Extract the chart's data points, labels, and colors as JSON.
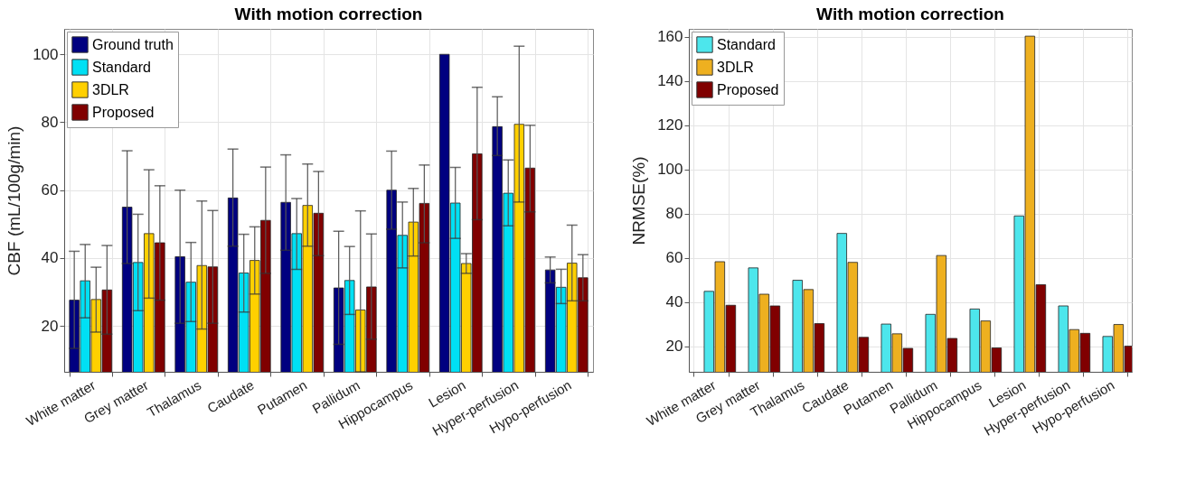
{
  "chart_data": [
    {
      "type": "bar",
      "title": "With motion correction",
      "ylabel": "CBF (mL/100g/min)",
      "categories": [
        "White matter",
        "Grey matter",
        "Thalamus",
        "Caudate",
        "Putamen",
        "Pallidum",
        "Hippocampus",
        "Lesion",
        "Hyper-perfusion",
        "Hypo-perfusion"
      ],
      "ylim": [
        6.5,
        107.5
      ],
      "yticks": [
        20,
        40,
        60,
        80,
        100
      ],
      "grid": true,
      "legend": "top left",
      "series": [
        {
          "name": "Ground truth",
          "color": "#000080",
          "values": [
            27.6,
            55.0,
            40.4,
            57.7,
            56.4,
            31.2,
            60.0,
            100,
            78.7,
            36.5
          ],
          "errors": [
            [
              13.4,
              42.0
            ],
            [
              38.4,
              71.6
            ],
            [
              20.8,
              60.0
            ],
            [
              43.5,
              72.1
            ],
            [
              42.3,
              70.4
            ],
            [
              14.6,
              47.9
            ],
            [
              48.5,
              71.5
            ],
            null,
            [
              70.2,
              87.5
            ],
            [
              32.7,
              40.3
            ]
          ]
        },
        {
          "name": "Standard",
          "color": "#00e0f4",
          "values": [
            33.3,
            38.7,
            32.9,
            35.6,
            47.2,
            33.4,
            46.7,
            56.2,
            59.1,
            31.4
          ],
          "errors": [
            [
              22.4,
              44.0
            ],
            [
              24.5,
              52.9
            ],
            [
              21.3,
              44.6
            ],
            [
              24.1,
              47.0
            ],
            [
              36.7,
              57.5
            ],
            [
              23.4,
              43.4
            ],
            [
              37.1,
              56.5
            ],
            [
              45.8,
              66.7
            ],
            [
              49.5,
              68.9
            ],
            [
              26.6,
              36.7
            ]
          ]
        },
        {
          "name": "3DLR",
          "color": "#ffd000",
          "values": [
            27.8,
            47.2,
            37.8,
            39.3,
            55.5,
            24.7,
            50.6,
            38.4,
            79.4,
            38.5
          ],
          "errors": [
            [
              18.2,
              37.3
            ],
            [
              28.2,
              66.0
            ],
            [
              19.1,
              56.8
            ],
            [
              29.4,
              49.2
            ],
            [
              43.5,
              67.7
            ],
            [
              6.5,
              53.9
            ],
            [
              40.6,
              60.5
            ],
            [
              35.5,
              41.3
            ],
            [
              56.5,
              102.4
            ],
            [
              27.4,
              49.7
            ]
          ]
        },
        {
          "name": "Proposed",
          "color": "#800000",
          "values": [
            30.6,
            44.5,
            37.4,
            51.1,
            53.2,
            31.5,
            56.1,
            70.7,
            66.5,
            34.2
          ],
          "errors": [
            [
              17.6,
              43.7
            ],
            [
              27.6,
              61.3
            ],
            [
              20.8,
              54.0
            ],
            [
              35.5,
              66.8
            ],
            [
              40.7,
              65.5
            ],
            [
              16.1,
              47.1
            ],
            [
              44.5,
              67.4
            ],
            [
              51.3,
              90.3
            ],
            [
              53.6,
              79.1
            ],
            [
              27.4,
              41.0
            ]
          ]
        }
      ]
    },
    {
      "type": "bar",
      "title": "With motion correction",
      "ylabel": "NRMSE(%)",
      "categories": [
        "White matter",
        "Grey matter",
        "Thalamus",
        "Caudate",
        "Putamen",
        "Pallidum",
        "Hippocampus",
        "Lesion",
        "Hyper-perfusion",
        "Hypo-perfusion"
      ],
      "ylim": [
        8.4,
        163.5
      ],
      "yticks": [
        20,
        40,
        60,
        80,
        100,
        120,
        140,
        160
      ],
      "grid": true,
      "legend": "top left",
      "series": [
        {
          "name": "Standard",
          "color": "#4de6ec",
          "values": [
            44.8,
            55.4,
            49.8,
            71.0,
            30.0,
            34.4,
            36.8,
            78.9,
            38.2,
            24.4
          ]
        },
        {
          "name": "3DLR",
          "color": "#eeb020",
          "values": [
            58.2,
            43.5,
            45.6,
            57.9,
            25.6,
            61.0,
            31.4,
            160.2,
            27.5,
            29.8
          ]
        },
        {
          "name": "Proposed",
          "color": "#800000",
          "values": [
            38.5,
            38.2,
            30.2,
            24.0,
            19.0,
            23.5,
            19.2,
            47.8,
            25.8,
            20.0
          ]
        }
      ]
    }
  ]
}
